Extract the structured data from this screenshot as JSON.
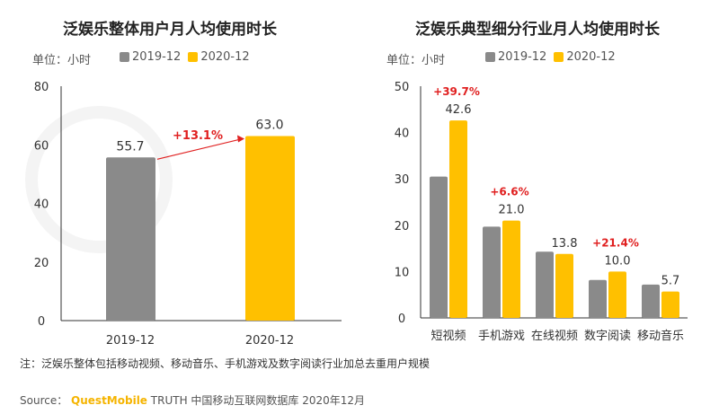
{
  "colors": {
    "series_2019": "#8a8a8a",
    "series_2020": "#ffc000",
    "growth": "#e02020"
  },
  "chart_data": [
    {
      "type": "bar",
      "title": "泛娱乐整体用户月人均使用时长",
      "unit_label": "单位：小时",
      "categories": [
        "2019-12",
        "2020-12"
      ],
      "values": [
        55.7,
        63.0
      ],
      "data_labels": [
        "55.7",
        "63.0"
      ],
      "annotation": "+13.1%",
      "ylim": [
        0,
        80
      ],
      "yticks": [
        "0",
        "20",
        "40",
        "60",
        "80"
      ],
      "legend": [
        "2019-12",
        "2020-12"
      ],
      "legend_position": "top"
    },
    {
      "type": "bar",
      "title": "泛娱乐典型细分行业月人均使用时长",
      "unit_label": "单位：小时",
      "categories": [
        "短视频",
        "手机游戏",
        "在线视频",
        "数字阅读",
        "移动音乐"
      ],
      "series": [
        {
          "name": "2019-12",
          "values": [
            30.5,
            19.7,
            14.3,
            8.2,
            7.2
          ]
        },
        {
          "name": "2020-12",
          "values": [
            42.6,
            21.0,
            13.8,
            10.0,
            5.7
          ]
        }
      ],
      "data_labels": [
        "42.6",
        "21.0",
        "13.8",
        "10.0",
        "5.7"
      ],
      "growth_labels": [
        "+39.7%",
        "+6.6%",
        "",
        "+21.4%",
        ""
      ],
      "ylim": [
        0,
        50
      ],
      "yticks": [
        "0",
        "10",
        "20",
        "30",
        "40",
        "50"
      ],
      "legend_position": "top"
    }
  ],
  "note": "注：泛娱乐整体包括移动视频、移动音乐、手机游戏及数字阅读行业加总去重用户规模",
  "source": {
    "prefix": "Source：",
    "brand": "QuestMobile",
    "text": "TRUTH 中国移动互联网数据库 2020年12月"
  },
  "watermark": "QUESTMOBILE"
}
